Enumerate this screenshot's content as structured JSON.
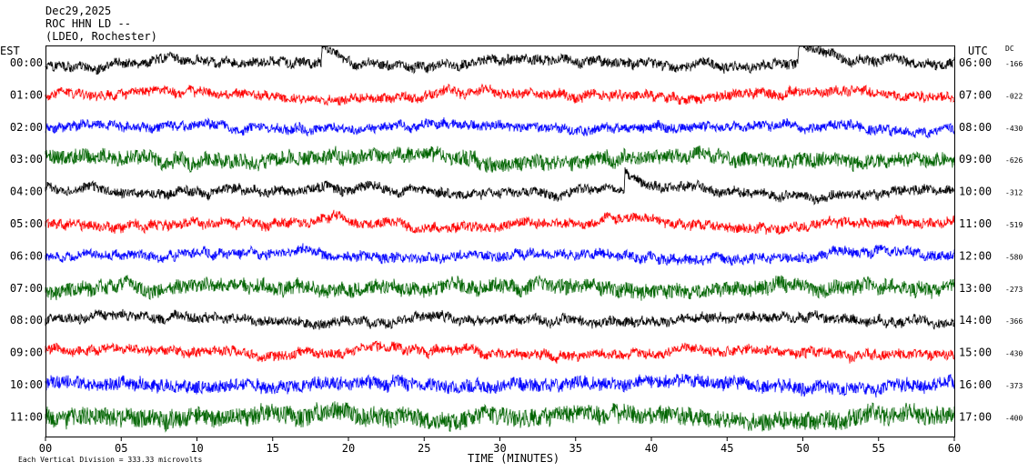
{
  "header": {
    "date": "Dec29,2025",
    "station": "ROC HHN LD --",
    "network": "(LDEO, Rochester)"
  },
  "left_axis_label": "EST",
  "right_axis_label": "UTC",
  "dc_label": "DC",
  "xlabel": "TIME (MINUTES)",
  "footer": "Each Vertical Division =  333.33 microvolts",
  "colors": {
    "black": "#000000",
    "red": "#ff0000",
    "blue": "#0000ff",
    "green": "#006400"
  },
  "chart_data": {
    "type": "line",
    "xlim": [
      0,
      60
    ],
    "x_ticks": [
      0,
      5,
      10,
      15,
      20,
      25,
      30,
      35,
      40,
      45,
      50,
      55,
      60
    ],
    "x_tick_labels": [
      "00",
      "05",
      "10",
      "15",
      "20",
      "25",
      "30",
      "35",
      "40",
      "45",
      "50",
      "55",
      "60"
    ],
    "rows": [
      {
        "est": "00:00",
        "utc": "06:00",
        "dc": "-166",
        "color": "#000000"
      },
      {
        "est": "01:00",
        "utc": "07:00",
        "dc": "-022",
        "color": "#ff0000"
      },
      {
        "est": "02:00",
        "utc": "08:00",
        "dc": "-430",
        "color": "#0000ff"
      },
      {
        "est": "03:00",
        "utc": "09:00",
        "dc": "-626",
        "color": "#006400"
      },
      {
        "est": "04:00",
        "utc": "10:00",
        "dc": "-312",
        "color": "#000000"
      },
      {
        "est": "05:00",
        "utc": "11:00",
        "dc": "-519",
        "color": "#ff0000"
      },
      {
        "est": "06:00",
        "utc": "12:00",
        "dc": "-580",
        "color": "#0000ff"
      },
      {
        "est": "07:00",
        "utc": "13:00",
        "dc": "-273",
        "color": "#006400"
      },
      {
        "est": "08:00",
        "utc": "14:00",
        "dc": "-366",
        "color": "#000000"
      },
      {
        "est": "09:00",
        "utc": "15:00",
        "dc": "-430",
        "color": "#ff0000"
      },
      {
        "est": "10:00",
        "utc": "16:00",
        "dc": "-373",
        "color": "#0000ff"
      },
      {
        "est": "11:00",
        "utc": "17:00",
        "dc": "-400",
        "color": "#006400"
      }
    ],
    "events": [
      {
        "row": 0,
        "minute": 18.5,
        "type": "spike"
      },
      {
        "row": 0,
        "minute": 50.0,
        "type": "spike"
      },
      {
        "row": 4,
        "minute": 38.5,
        "type": "spike"
      },
      {
        "row": 5,
        "minute": 19.0,
        "type": "bump"
      }
    ]
  }
}
